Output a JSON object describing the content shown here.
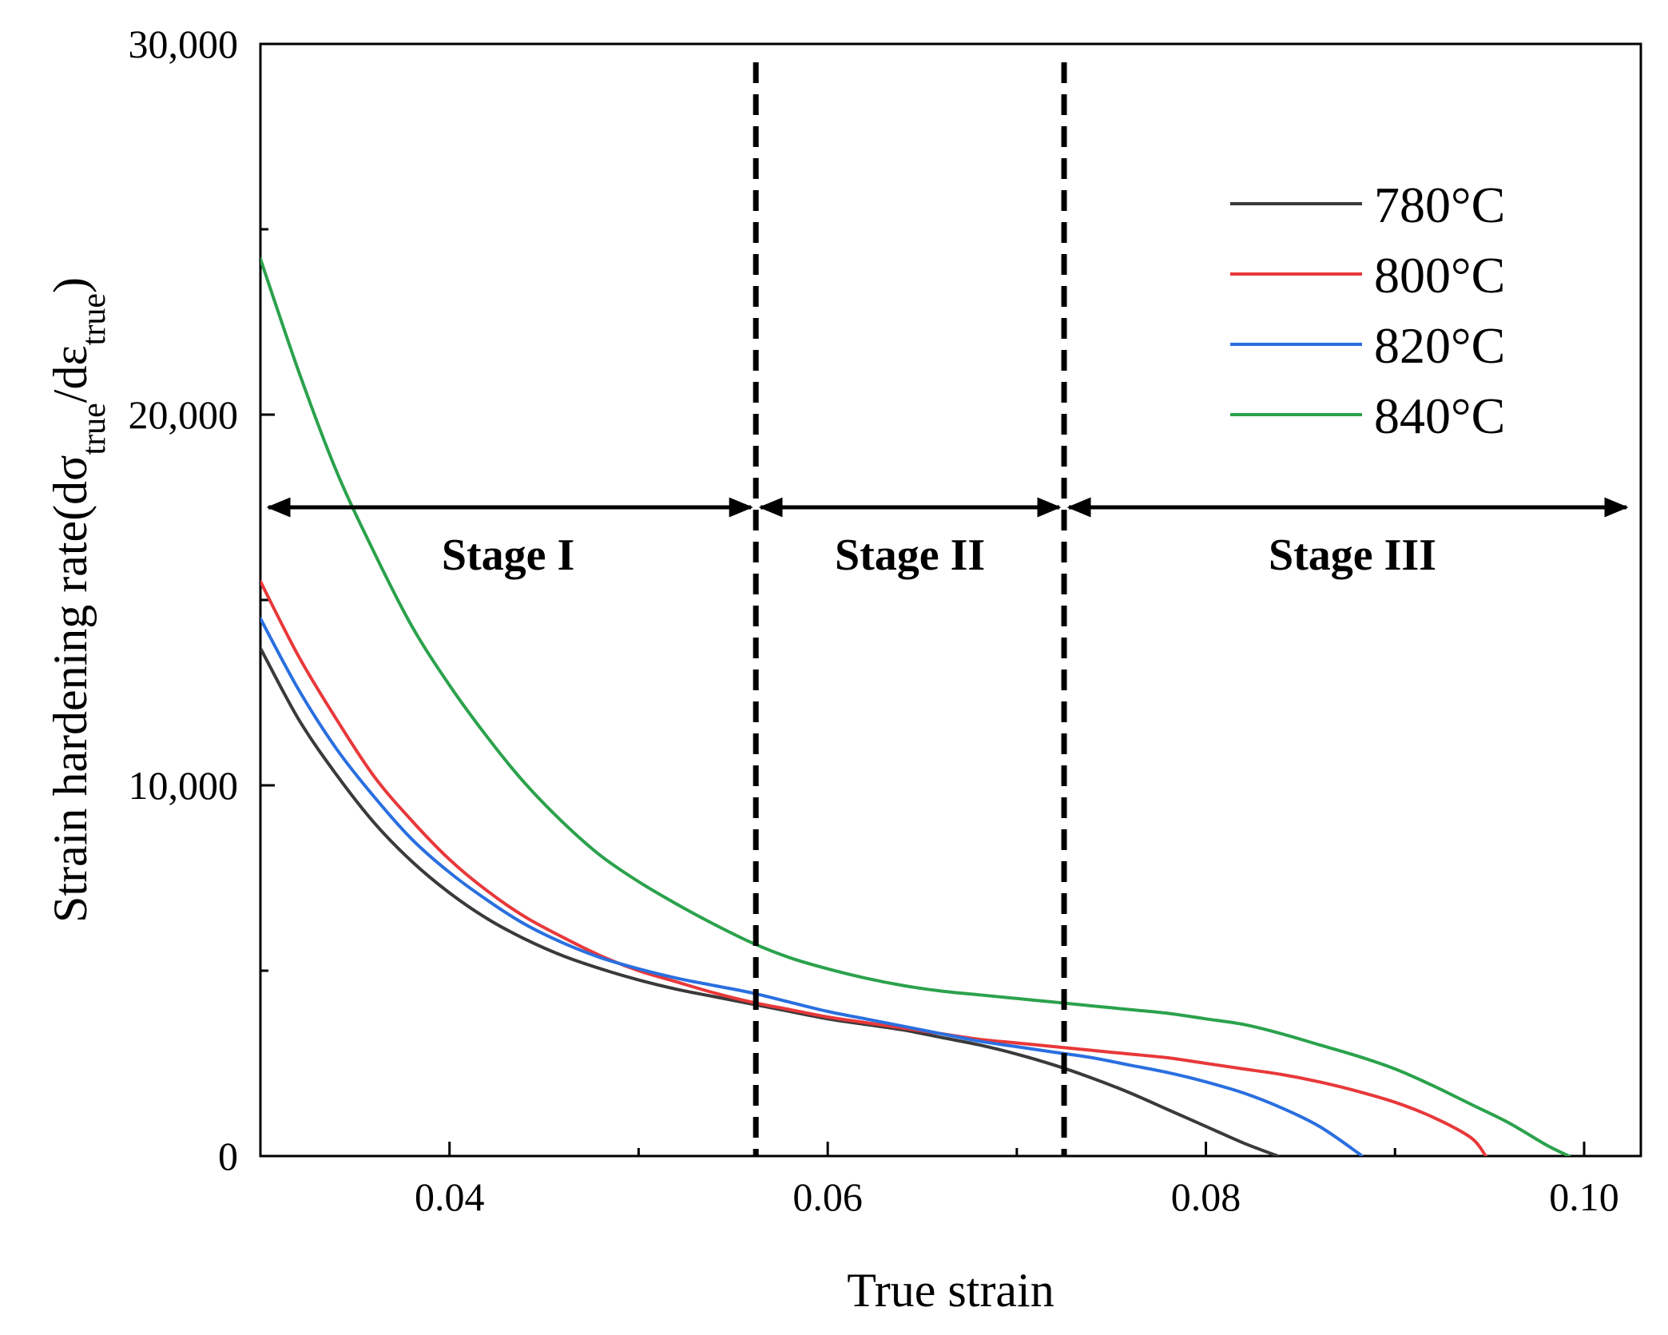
{
  "chart_data": {
    "type": "line",
    "title": "",
    "xlabel": "True strain",
    "ylabel": {
      "base": "Strain hardening rate(d",
      "sigma": "σ",
      "sub1": "true",
      "slash": "/d",
      "eps": "ε",
      "sub2": "true",
      "close": ")"
    },
    "xlim": [
      0.03,
      0.103
    ],
    "ylim": [
      0,
      30000
    ],
    "x_ticks": [
      0.04,
      0.06,
      0.08,
      0.1
    ],
    "x_tick_labels": [
      "0.04",
      "0.06",
      "0.08",
      "0.10"
    ],
    "x_minor_ticks": [
      0.05,
      0.07,
      0.09
    ],
    "y_ticks": [
      0,
      10000,
      20000,
      30000
    ],
    "y_tick_labels": [
      "0",
      "10,000",
      "20,000",
      "30,000"
    ],
    "y_minor_ticks": [
      5000,
      15000,
      25000
    ],
    "grid": false,
    "legend_position": "top-right",
    "series": [
      {
        "name": "780°C",
        "color": "#3a3a3a",
        "points": [
          [
            0.03,
            13700
          ],
          [
            0.032,
            11800
          ],
          [
            0.034,
            10300
          ],
          [
            0.036,
            9000
          ],
          [
            0.038,
            7950
          ],
          [
            0.04,
            7100
          ],
          [
            0.042,
            6400
          ],
          [
            0.044,
            5850
          ],
          [
            0.046,
            5400
          ],
          [
            0.048,
            5050
          ],
          [
            0.05,
            4750
          ],
          [
            0.052,
            4500
          ],
          [
            0.054,
            4300
          ],
          [
            0.056,
            4100
          ],
          [
            0.058,
            3900
          ],
          [
            0.06,
            3700
          ],
          [
            0.062,
            3550
          ],
          [
            0.064,
            3400
          ],
          [
            0.066,
            3200
          ],
          [
            0.068,
            3000
          ],
          [
            0.07,
            2750
          ],
          [
            0.072,
            2450
          ],
          [
            0.074,
            2100
          ],
          [
            0.076,
            1700
          ],
          [
            0.078,
            1250
          ],
          [
            0.08,
            800
          ],
          [
            0.082,
            350
          ],
          [
            0.0838,
            0
          ]
        ]
      },
      {
        "name": "800°C",
        "color": "#e8383a",
        "points": [
          [
            0.03,
            15500
          ],
          [
            0.032,
            13500
          ],
          [
            0.034,
            11800
          ],
          [
            0.036,
            10250
          ],
          [
            0.038,
            9050
          ],
          [
            0.04,
            8000
          ],
          [
            0.042,
            7150
          ],
          [
            0.044,
            6450
          ],
          [
            0.046,
            5900
          ],
          [
            0.048,
            5400
          ],
          [
            0.05,
            5000
          ],
          [
            0.052,
            4700
          ],
          [
            0.054,
            4400
          ],
          [
            0.056,
            4150
          ],
          [
            0.058,
            3950
          ],
          [
            0.06,
            3750
          ],
          [
            0.062,
            3600
          ],
          [
            0.064,
            3450
          ],
          [
            0.066,
            3300
          ],
          [
            0.068,
            3150
          ],
          [
            0.07,
            3050
          ],
          [
            0.072,
            2950
          ],
          [
            0.074,
            2850
          ],
          [
            0.076,
            2750
          ],
          [
            0.078,
            2650
          ],
          [
            0.08,
            2500
          ],
          [
            0.082,
            2350
          ],
          [
            0.084,
            2200
          ],
          [
            0.086,
            2000
          ],
          [
            0.088,
            1750
          ],
          [
            0.09,
            1450
          ],
          [
            0.092,
            1050
          ],
          [
            0.094,
            500
          ],
          [
            0.0948,
            0
          ]
        ]
      },
      {
        "name": "820°C",
        "color": "#2a6fe0",
        "points": [
          [
            0.03,
            14500
          ],
          [
            0.032,
            12600
          ],
          [
            0.034,
            11000
          ],
          [
            0.036,
            9700
          ],
          [
            0.038,
            8550
          ],
          [
            0.04,
            7650
          ],
          [
            0.042,
            6900
          ],
          [
            0.044,
            6250
          ],
          [
            0.046,
            5750
          ],
          [
            0.048,
            5350
          ],
          [
            0.05,
            5050
          ],
          [
            0.052,
            4800
          ],
          [
            0.054,
            4600
          ],
          [
            0.056,
            4400
          ],
          [
            0.058,
            4150
          ],
          [
            0.06,
            3900
          ],
          [
            0.062,
            3700
          ],
          [
            0.064,
            3500
          ],
          [
            0.066,
            3300
          ],
          [
            0.068,
            3100
          ],
          [
            0.07,
            2950
          ],
          [
            0.072,
            2800
          ],
          [
            0.074,
            2650
          ],
          [
            0.076,
            2450
          ],
          [
            0.078,
            2250
          ],
          [
            0.08,
            2000
          ],
          [
            0.082,
            1700
          ],
          [
            0.084,
            1300
          ],
          [
            0.086,
            800
          ],
          [
            0.088,
            100
          ],
          [
            0.0882,
            0
          ]
        ]
      },
      {
        "name": "840°C",
        "color": "#2ba24c",
        "points": [
          [
            0.03,
            24200
          ],
          [
            0.032,
            21200
          ],
          [
            0.034,
            18500
          ],
          [
            0.036,
            16300
          ],
          [
            0.038,
            14300
          ],
          [
            0.04,
            12700
          ],
          [
            0.042,
            11300
          ],
          [
            0.044,
            10050
          ],
          [
            0.046,
            9000
          ],
          [
            0.048,
            8100
          ],
          [
            0.05,
            7400
          ],
          [
            0.052,
            6800
          ],
          [
            0.054,
            6250
          ],
          [
            0.056,
            5750
          ],
          [
            0.058,
            5350
          ],
          [
            0.06,
            5050
          ],
          [
            0.062,
            4800
          ],
          [
            0.064,
            4600
          ],
          [
            0.066,
            4450
          ],
          [
            0.068,
            4350
          ],
          [
            0.07,
            4250
          ],
          [
            0.072,
            4150
          ],
          [
            0.074,
            4050
          ],
          [
            0.076,
            3950
          ],
          [
            0.078,
            3850
          ],
          [
            0.08,
            3700
          ],
          [
            0.082,
            3550
          ],
          [
            0.084,
            3300
          ],
          [
            0.086,
            3000
          ],
          [
            0.088,
            2700
          ],
          [
            0.09,
            2350
          ],
          [
            0.092,
            1900
          ],
          [
            0.094,
            1400
          ],
          [
            0.096,
            900
          ],
          [
            0.098,
            300
          ],
          [
            0.0992,
            0
          ]
        ]
      }
    ],
    "dividers": [
      0.0562,
      0.0725
    ],
    "stage_arrow_y": 17500,
    "stages": [
      {
        "label": "Stage I",
        "from": 0.03,
        "to": 0.0562
      },
      {
        "label": "Stage II",
        "from": 0.0562,
        "to": 0.0725
      },
      {
        "label": "Stage III",
        "from": 0.0725,
        "to": 0.103
      }
    ]
  }
}
